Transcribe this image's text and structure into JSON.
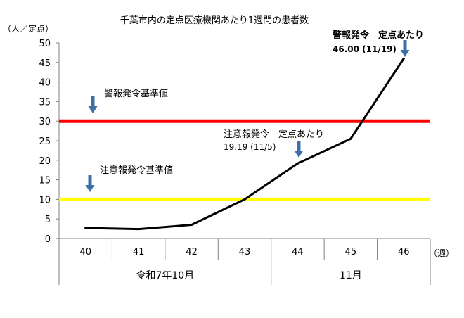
{
  "chart_data": {
    "type": "line",
    "title": "千葉市内の定点医療機関あたり1週間の患者数",
    "ylabel": "（人／定点）",
    "xlabel": "（週）",
    "ylim": [
      0,
      50
    ],
    "y_ticks": [
      "0",
      "5",
      "10",
      "15",
      "20",
      "25",
      "30",
      "35",
      "40",
      "45",
      "50"
    ],
    "x": [
      "40",
      "41",
      "42",
      "43",
      "44",
      "45",
      "46"
    ],
    "month_labels": [
      "令和7年10月",
      "11月"
    ],
    "series": [
      {
        "values": [
          2.7,
          2.4,
          3.5,
          10.0,
          19.19,
          25.5,
          46.0
        ]
      }
    ],
    "reference_lines": [
      {
        "label": "警報発令基準値",
        "value": 30,
        "color": "#ff0000"
      },
      {
        "label": "注意報発令基準値",
        "value": 10,
        "color": "#ffff00"
      }
    ],
    "annotations": [
      {
        "title": "注意報発令　定点あたり",
        "value_text": "19.19 (11/5)",
        "bold": false
      },
      {
        "title": "警報発令　定点あたり",
        "value_text": "46.00 (11/19)",
        "bold": true
      }
    ],
    "grid": false,
    "legend": "none",
    "colors": {
      "series": "#000000",
      "arrow": "#3e6fa6",
      "axis": "#808080"
    }
  }
}
